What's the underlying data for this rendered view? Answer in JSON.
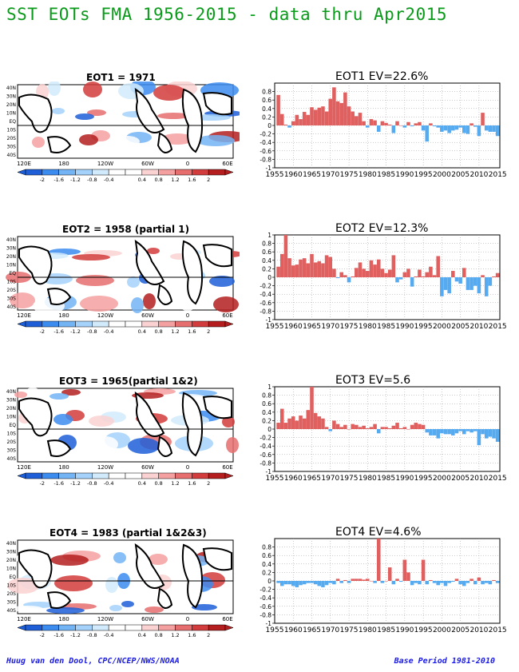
{
  "page": {
    "title": "SST EOTs FMA 1956-2015 - data thru Apr2015",
    "footer_left": "Huug van den Dool, CPC/NCEP/NWS/NOAA",
    "footer_right": "Base Period 1981-2010"
  },
  "colors": {
    "title": "#0a9a1a",
    "positive_bar": "#e06060",
    "negative_bar": "#56aaf0",
    "footer": "#1a1ae6",
    "colorbar": [
      "#1e5fd8",
      "#3c8cf0",
      "#73b4f5",
      "#a5d2fa",
      "#d2ebfc",
      "#ffffff",
      "#ffffff",
      "#fad2d2",
      "#f5a0a0",
      "#e66e6e",
      "#d23c3c",
      "#b41e1e"
    ]
  },
  "maps": {
    "lat_labels": [
      "40N",
      "30N",
      "20N",
      "10N",
      "EQ",
      "10S",
      "20S",
      "30S",
      "40S"
    ],
    "lon_labels": [
      "120E",
      "180",
      "120W",
      "60W",
      "0",
      "60E"
    ],
    "colorbar_labels": [
      "-2",
      "-1.6",
      "-1.2",
      "-0.8",
      "-0.4",
      "0.4",
      "0.8",
      "1.2",
      "1.6",
      "2"
    ]
  },
  "panels": [
    {
      "map_title": "EOT1    = 1971"
    },
    {
      "map_title": "EOT2    = 1958 (partial 1)"
    },
    {
      "map_title": "EOT3    = 1965(partial 1&2)"
    },
    {
      "map_title": "EOT4    = 1983 (partial 1&2&3)"
    }
  ],
  "chart_data": [
    {
      "type": "bar",
      "title": "EOT1  EV=22.6%",
      "x": [
        1956,
        1957,
        1958,
        1959,
        1960,
        1961,
        1962,
        1963,
        1964,
        1965,
        1966,
        1967,
        1968,
        1969,
        1970,
        1971,
        1972,
        1973,
        1974,
        1975,
        1976,
        1977,
        1978,
        1979,
        1980,
        1981,
        1982,
        1983,
        1984,
        1985,
        1986,
        1987,
        1988,
        1989,
        1990,
        1991,
        1992,
        1993,
        1994,
        1995,
        1996,
        1997,
        1998,
        1999,
        2000,
        2001,
        2002,
        2003,
        2004,
        2005,
        2006,
        2007,
        2008,
        2009,
        2010,
        2011,
        2012,
        2013,
        2014,
        2015
      ],
      "values": [
        0.72,
        0.27,
        0.02,
        -0.05,
        0.1,
        0.25,
        0.15,
        0.32,
        0.25,
        0.43,
        0.37,
        0.42,
        0.45,
        0.33,
        0.63,
        0.9,
        0.57,
        0.53,
        0.78,
        0.45,
        0.33,
        0.22,
        0.3,
        0.1,
        -0.05,
        0.15,
        0.12,
        -0.15,
        0.1,
        0.06,
        0.02,
        -0.18,
        0.1,
        0.0,
        -0.05,
        0.08,
        -0.02,
        0.05,
        0.08,
        -0.12,
        -0.38,
        0.05,
        -0.02,
        -0.05,
        -0.15,
        -0.12,
        -0.18,
        -0.12,
        -0.1,
        -0.05,
        -0.18,
        -0.2,
        0.05,
        -0.03,
        -0.25,
        0.3,
        -0.12,
        -0.15,
        -0.15,
        -0.25
      ],
      "xticks": [
        "1955",
        "1960",
        "1965",
        "1970",
        "1975",
        "1980",
        "1985",
        "1990",
        "1995",
        "2000",
        "2005",
        "2010",
        "2015"
      ],
      "yticks": [
        "0.8",
        "0.6",
        "0.4",
        "0.2",
        "0",
        "-0.2",
        "-0.4",
        "-0.6",
        "-0.8",
        "-1"
      ],
      "ylim": [
        -1,
        1
      ]
    },
    {
      "type": "bar",
      "title": "EOT2  EV=12.3%",
      "x": [
        1956,
        1957,
        1958,
        1959,
        1960,
        1961,
        1962,
        1963,
        1964,
        1965,
        1966,
        1967,
        1968,
        1969,
        1970,
        1971,
        1972,
        1973,
        1974,
        1975,
        1976,
        1977,
        1978,
        1979,
        1980,
        1981,
        1982,
        1983,
        1984,
        1985,
        1986,
        1987,
        1988,
        1989,
        1990,
        1991,
        1992,
        1993,
        1994,
        1995,
        1996,
        1997,
        1998,
        1999,
        2000,
        2001,
        2002,
        2003,
        2004,
        2005,
        2006,
        2007,
        2008,
        2009,
        2010,
        2011,
        2012,
        2013,
        2014,
        2015
      ],
      "values": [
        0.25,
        0.55,
        1.0,
        0.45,
        0.28,
        0.3,
        0.42,
        0.45,
        0.33,
        0.55,
        0.35,
        0.38,
        0.33,
        0.52,
        0.48,
        0.2,
        -0.02,
        0.12,
        0.05,
        -0.12,
        0.02,
        0.22,
        0.35,
        0.2,
        0.15,
        0.4,
        0.3,
        0.42,
        0.2,
        0.1,
        0.18,
        0.52,
        -0.12,
        -0.05,
        0.12,
        0.2,
        -0.22,
        0.02,
        0.18,
        0.02,
        0.12,
        0.25,
        0.05,
        0.5,
        -0.45,
        -0.3,
        -0.38,
        0.15,
        -0.1,
        -0.15,
        0.22,
        -0.3,
        -0.3,
        -0.2,
        -0.38,
        0.05,
        -0.45,
        -0.2,
        0.02,
        0.1
      ],
      "xticks": [
        "1955",
        "1960",
        "1965",
        "1970",
        "1975",
        "1980",
        "1985",
        "1990",
        "1995",
        "2000",
        "2005",
        "2010",
        "2015"
      ],
      "yticks": [
        "1",
        "0.8",
        "0.6",
        "0.4",
        "0.2",
        "0",
        "-0.2",
        "-0.4",
        "-0.6",
        "-0.8",
        "-1"
      ],
      "ylim": [
        -1,
        1
      ]
    },
    {
      "type": "bar",
      "title": "EOT3  EV=5.6",
      "x": [
        1956,
        1957,
        1958,
        1959,
        1960,
        1961,
        1962,
        1963,
        1964,
        1965,
        1966,
        1967,
        1968,
        1969,
        1970,
        1971,
        1972,
        1973,
        1974,
        1975,
        1976,
        1977,
        1978,
        1979,
        1980,
        1981,
        1982,
        1983,
        1984,
        1985,
        1986,
        1987,
        1988,
        1989,
        1990,
        1991,
        1992,
        1993,
        1994,
        1995,
        1996,
        1997,
        1998,
        1999,
        2000,
        2001,
        2002,
        2003,
        2004,
        2005,
        2006,
        2007,
        2008,
        2009,
        2010,
        2011,
        2012,
        2013,
        2014,
        2015
      ],
      "values": [
        0.15,
        0.48,
        0.15,
        0.25,
        0.3,
        0.2,
        0.32,
        0.25,
        0.45,
        1.0,
        0.38,
        0.3,
        0.25,
        0.05,
        -0.05,
        0.2,
        0.12,
        0.05,
        0.1,
        0.0,
        0.12,
        0.1,
        0.05,
        0.08,
        0.02,
        0.05,
        0.12,
        -0.1,
        0.05,
        0.05,
        0.02,
        0.08,
        0.15,
        0.02,
        0.05,
        0.0,
        0.1,
        0.15,
        0.12,
        0.1,
        -0.08,
        -0.15,
        -0.15,
        -0.22,
        -0.1,
        -0.12,
        -0.12,
        -0.15,
        -0.1,
        -0.05,
        -0.12,
        -0.05,
        -0.08,
        -0.05,
        -0.38,
        -0.12,
        -0.22,
        -0.18,
        -0.22,
        -0.3
      ],
      "xticks": [
        "1955",
        "1960",
        "1965",
        "1970",
        "1975",
        "1980",
        "1985",
        "1990",
        "1995",
        "2000",
        "2005",
        "2010",
        "2015"
      ],
      "yticks": [
        "1",
        "0.8",
        "0.6",
        "0.4",
        "0.2",
        "0",
        "-0.2",
        "-0.4",
        "-0.6",
        "-0.8",
        "-1"
      ],
      "ylim": [
        -1,
        1
      ]
    },
    {
      "type": "bar",
      "title": "EOT4  EV=4.6%",
      "x": [
        1956,
        1957,
        1958,
        1959,
        1960,
        1961,
        1962,
        1963,
        1964,
        1965,
        1966,
        1967,
        1968,
        1969,
        1970,
        1971,
        1972,
        1973,
        1974,
        1975,
        1976,
        1977,
        1978,
        1979,
        1980,
        1981,
        1982,
        1983,
        1984,
        1985,
        1986,
        1987,
        1988,
        1989,
        1990,
        1991,
        1992,
        1993,
        1994,
        1995,
        1996,
        1997,
        1998,
        1999,
        2000,
        2001,
        2002,
        2003,
        2004,
        2005,
        2006,
        2007,
        2008,
        2009,
        2010,
        2011,
        2012,
        2013,
        2014,
        2015
      ],
      "values": [
        -0.05,
        -0.12,
        -0.08,
        -0.08,
        -0.12,
        -0.15,
        -0.1,
        -0.08,
        -0.05,
        -0.05,
        -0.08,
        -0.12,
        -0.15,
        -0.1,
        -0.05,
        -0.08,
        0.05,
        -0.05,
        0.02,
        -0.05,
        0.05,
        0.05,
        0.05,
        0.03,
        0.05,
        0.0,
        -0.05,
        1.0,
        -0.05,
        0.0,
        0.32,
        -0.08,
        0.05,
        -0.02,
        0.5,
        0.2,
        -0.1,
        -0.05,
        -0.08,
        0.5,
        -0.08,
        0.02,
        -0.05,
        -0.1,
        -0.05,
        -0.12,
        -0.05,
        -0.02,
        0.05,
        -0.08,
        -0.12,
        -0.05,
        0.05,
        -0.08,
        0.08,
        -0.08,
        -0.05,
        -0.08,
        0.02,
        -0.05
      ],
      "xticks": [
        "1955",
        "1960",
        "1965",
        "1970",
        "1975",
        "1980",
        "1985",
        "1990",
        "1995",
        "2000",
        "2005",
        "2010",
        "2015"
      ],
      "yticks": [
        "0.8",
        "0.6",
        "0.4",
        "0.2",
        "0",
        "-0.2",
        "-0.4",
        "-0.6",
        "-0.8",
        "-1"
      ],
      "ylim": [
        -1,
        1
      ]
    }
  ]
}
